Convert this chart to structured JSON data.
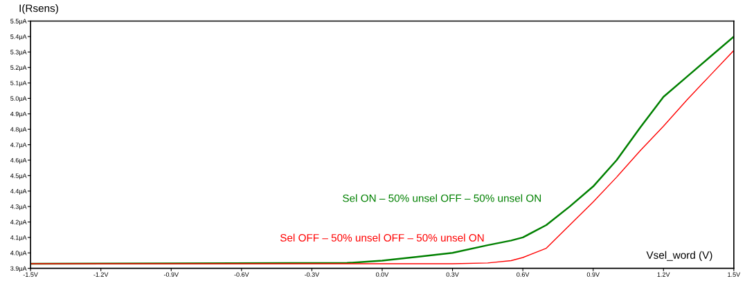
{
  "chart_data": {
    "type": "line",
    "xlabel": "Vsel_word (V)",
    "ylabel": "I(Rsens)",
    "xlim": [
      -1.5,
      1.5
    ],
    "ylim": [
      3.9,
      5.5
    ],
    "xticks": [
      {
        "value": -1.5,
        "label": "-1.5V"
      },
      {
        "value": -1.2,
        "label": "-1.2V"
      },
      {
        "value": -0.9,
        "label": "-0.9V"
      },
      {
        "value": -0.6,
        "label": "-0.6V"
      },
      {
        "value": -0.3,
        "label": "-0.3V"
      },
      {
        "value": 0.0,
        "label": "0.0V"
      },
      {
        "value": 0.3,
        "label": "0.3V"
      },
      {
        "value": 0.6,
        "label": "0.6V"
      },
      {
        "value": 0.9,
        "label": "0.9V"
      },
      {
        "value": 1.2,
        "label": "1.2V"
      },
      {
        "value": 1.5,
        "label": "1.5V"
      }
    ],
    "yticks": [
      {
        "value": 3.9,
        "label": "3.9µA"
      },
      {
        "value": 4.0,
        "label": "4.0µA"
      },
      {
        "value": 4.1,
        "label": "4.1µA"
      },
      {
        "value": 4.2,
        "label": "4.2µA"
      },
      {
        "value": 4.3,
        "label": "4.3µA"
      },
      {
        "value": 4.4,
        "label": "4.4µA"
      },
      {
        "value": 4.5,
        "label": "4.5µA"
      },
      {
        "value": 4.6,
        "label": "4.6µA"
      },
      {
        "value": 4.7,
        "label": "4.7µA"
      },
      {
        "value": 4.8,
        "label": "4.8µA"
      },
      {
        "value": 4.9,
        "label": "4.9µA"
      },
      {
        "value": 5.0,
        "label": "5.0µA"
      },
      {
        "value": 5.1,
        "label": "5.1µA"
      },
      {
        "value": 5.2,
        "label": "5.2µA"
      },
      {
        "value": 5.3,
        "label": "5.3µA"
      },
      {
        "value": 5.4,
        "label": "5.4µA"
      },
      {
        "value": 5.5,
        "label": "5.5µA"
      }
    ],
    "grid": false,
    "legend": false,
    "marker": "none",
    "line_style": "solid",
    "x": [
      -1.5,
      -0.15,
      0.0,
      0.15,
      0.3,
      0.45,
      0.55,
      0.6,
      0.7,
      0.8,
      0.9,
      1.0,
      1.1,
      1.2,
      1.3,
      1.4,
      1.5
    ],
    "series": [
      {
        "name": "Sel ON – 50% unsel OFF – 50% unsel ON",
        "color": "#008000",
        "values": [
          3.93,
          3.935,
          3.95,
          3.975,
          4.0,
          4.05,
          4.08,
          4.1,
          4.18,
          4.3,
          4.43,
          4.6,
          4.81,
          5.01,
          5.14,
          5.27,
          5.4
        ]
      },
      {
        "name": "Sel OFF – 50% unsel OFF – 50% unsel ON",
        "color": "#ff0000",
        "values": [
          3.93,
          3.93,
          3.93,
          3.93,
          3.93,
          3.935,
          3.95,
          3.97,
          4.03,
          4.18,
          4.33,
          4.49,
          4.66,
          4.82,
          4.99,
          5.15,
          5.31
        ]
      }
    ]
  }
}
